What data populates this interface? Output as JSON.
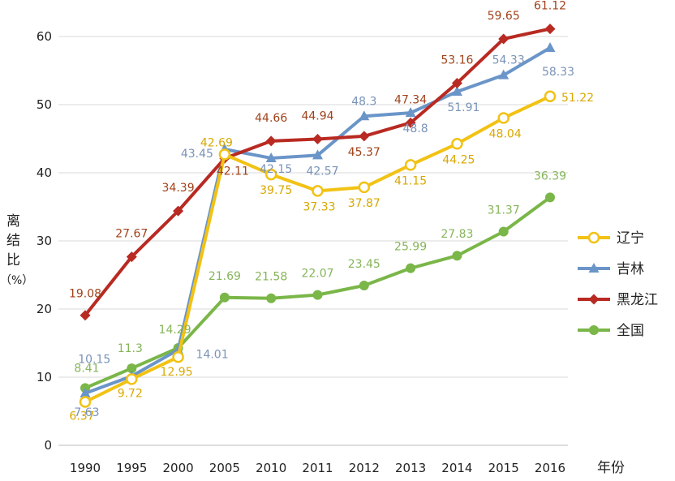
{
  "chart_data": {
    "type": "line",
    "title": "",
    "xlabel": "年份",
    "ylabel_chars": [
      "离",
      "结",
      "比",
      "（%）"
    ],
    "ylim": [
      0,
      60
    ],
    "yticks": [
      0,
      10,
      20,
      30,
      40,
      50,
      60
    ],
    "grid": "horizontal",
    "legend_position": "right",
    "categories": [
      "1990",
      "1995",
      "2000",
      "2005",
      "2010",
      "2011",
      "2012",
      "2013",
      "2014",
      "2015",
      "2016"
    ],
    "series": [
      {
        "name": "辽宁",
        "color": "#f2c214",
        "label_color": "#d9a800",
        "marker": "open-circle",
        "values": [
          6.37,
          9.72,
          12.95,
          42.69,
          39.75,
          37.33,
          37.87,
          41.15,
          44.25,
          48.04,
          51.22
        ],
        "labels": [
          "6.37",
          "9.72",
          "12.95",
          "42.69",
          "39.75",
          "37.33",
          "37.87",
          "41.15",
          "44.25",
          "48.04",
          "51.22"
        ]
      },
      {
        "name": "吉林",
        "color": "#6a95c8",
        "label_color": "#7a93b8",
        "marker": "triangle",
        "values": [
          7.63,
          10.15,
          14.01,
          43.45,
          42.15,
          42.57,
          48.3,
          48.8,
          51.91,
          54.33,
          58.33
        ],
        "labels": [
          "7.63",
          "10.15",
          "14.01",
          "43.45",
          "42.15",
          "42.57",
          "48.3",
          "48.8",
          "51.91",
          "54.33",
          "58.33"
        ]
      },
      {
        "name": "黑龙江",
        "color": "#b82a22",
        "label_color": "#a0421a",
        "marker": "diamond",
        "values": [
          19.08,
          27.67,
          34.39,
          42.11,
          44.66,
          44.94,
          45.37,
          47.34,
          53.16,
          59.65,
          61.12
        ],
        "labels": [
          "19.08",
          "27.67",
          "34.39",
          "42.11",
          "44.66",
          "44.94",
          "45.37",
          "47.34",
          "53.16",
          "59.65",
          "61.12"
        ]
      },
      {
        "name": "全国",
        "color": "#7ab648",
        "label_color": "#86b55a",
        "marker": "circle",
        "values": [
          8.41,
          11.3,
          14.29,
          21.69,
          21.58,
          22.07,
          23.45,
          25.99,
          27.83,
          31.37,
          36.39
        ],
        "labels": [
          "8.41",
          "11.3",
          "14.29",
          "21.69",
          "21.58",
          "22.07",
          "23.45",
          "25.99",
          "27.83",
          "31.37",
          "36.39"
        ]
      }
    ]
  }
}
